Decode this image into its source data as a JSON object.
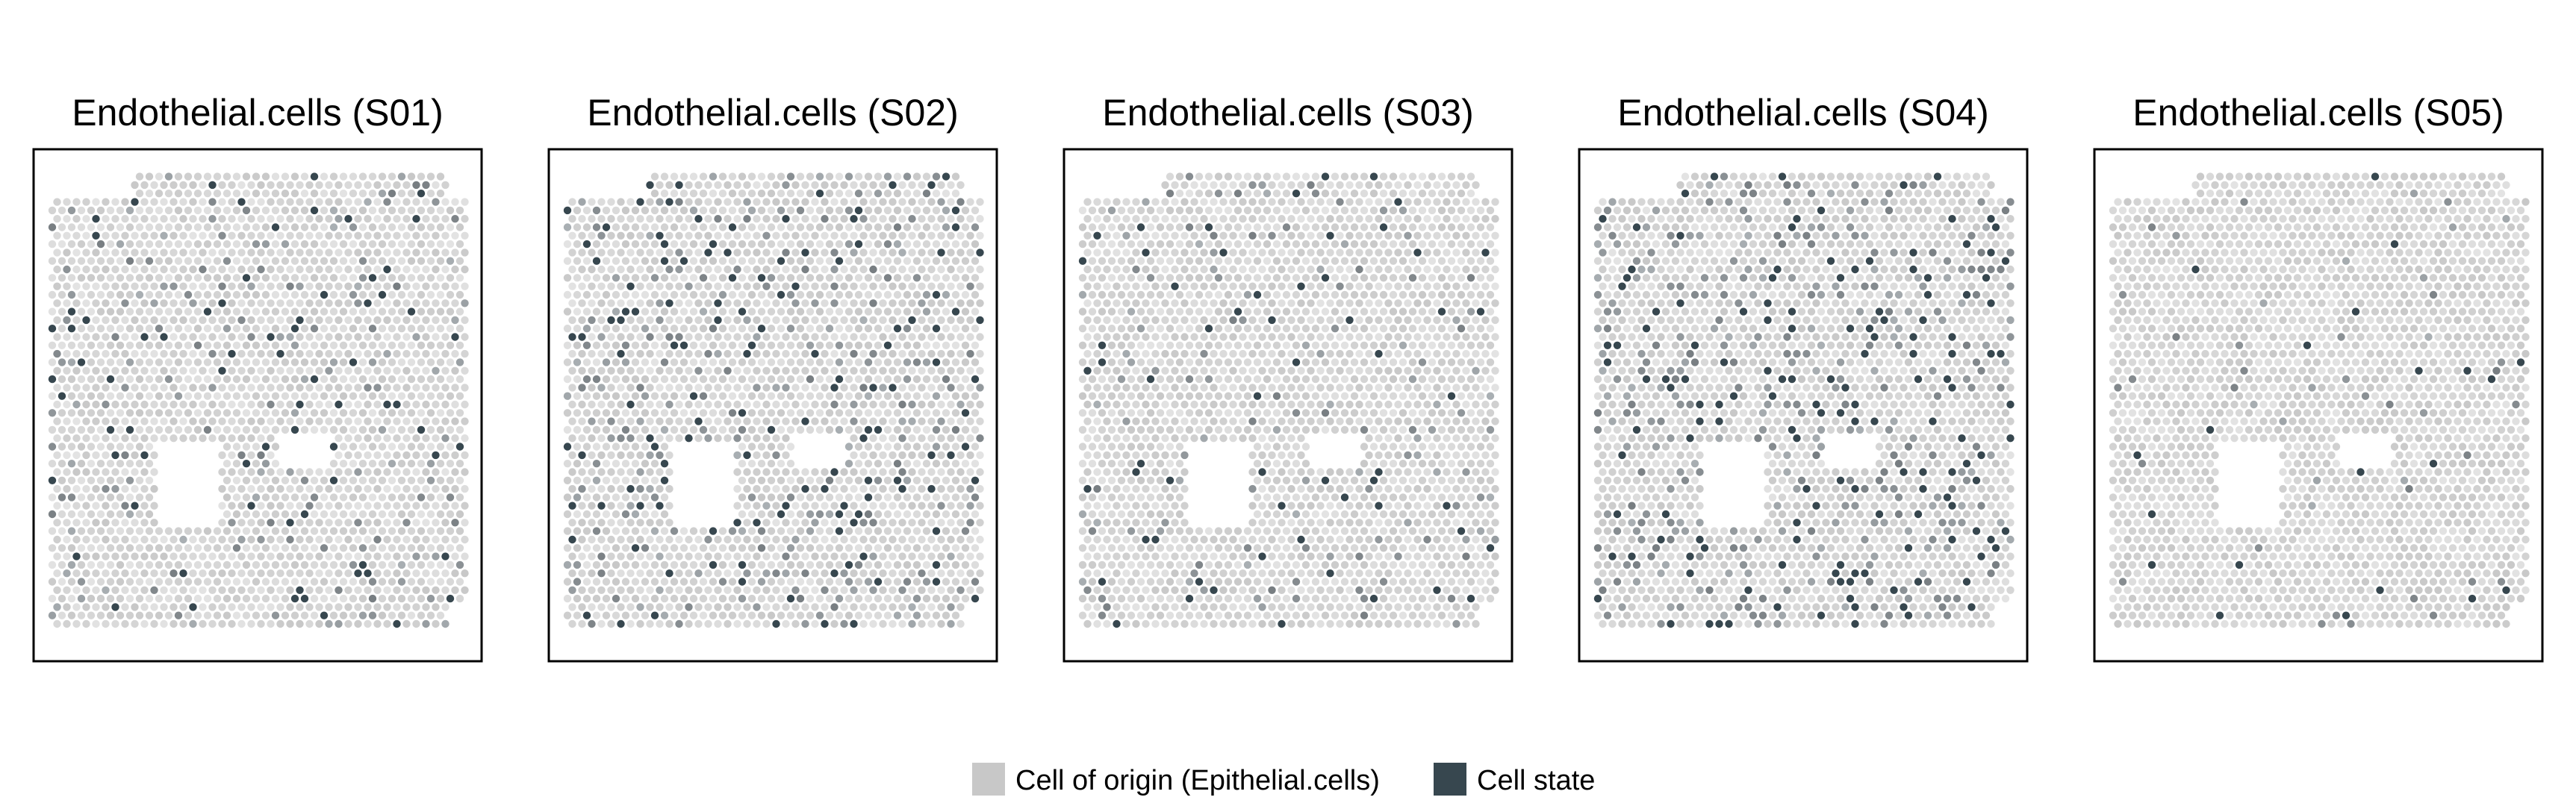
{
  "chart_data": {
    "type": "scatter",
    "subtype": "spatial-hexbin",
    "colors": {
      "origin": "#c8c8c8",
      "state": "#37474f"
    },
    "panels": [
      {
        "title": "Endothelial.cells (S01)",
        "state_level": 0.18,
        "seed": 11
      },
      {
        "title": "Endothelial.cells (S02)",
        "state_level": 0.32,
        "seed": 23
      },
      {
        "title": "Endothelial.cells (S03)",
        "state_level": 0.14,
        "seed": 37
      },
      {
        "title": "Endothelial.cells (S04)",
        "state_level": 0.4,
        "seed": 41
      },
      {
        "title": "Endothelial.cells (S05)",
        "state_level": 0.06,
        "seed": 53
      }
    ],
    "legend": {
      "position": "bottom",
      "items": [
        {
          "label": "Cell of origin (Epithelial.cells)",
          "color": "#c8c8c8"
        },
        {
          "label": "Cell state",
          "color": "#37474f"
        }
      ]
    }
  }
}
